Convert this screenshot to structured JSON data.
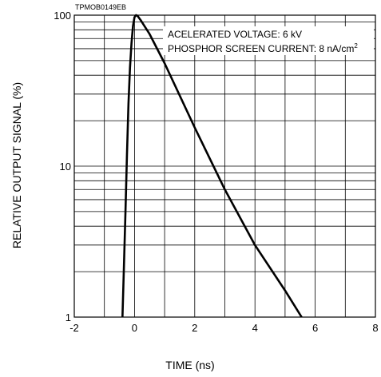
{
  "chart_data": {
    "type": "line",
    "figure_code": "TPMOB0149EB",
    "xlabel": "TIME (ns)",
    "ylabel": "RELATIVE OUTPUT SIGNAL (%)",
    "xlim": [
      -2,
      8
    ],
    "ylim": [
      1,
      100
    ],
    "y_scale": "log",
    "grid": true,
    "x_ticks": [
      -2,
      0,
      2,
      4,
      6,
      8
    ],
    "y_ticks": [
      1,
      10,
      100
    ],
    "annotations": {
      "voltage": "ACELERATED VOLTAGE: 6 kV",
      "current_prefix": "PHOSPHOR SCREEN CURRENT: 8 nA/cm",
      "current_sup": "2"
    },
    "series": [
      {
        "x": [
          -0.4,
          -0.35,
          -0.3,
          -0.25,
          -0.2,
          -0.15,
          -0.1,
          -0.05,
          0.0,
          0.05,
          0.1,
          0.2,
          0.5,
          1.0,
          2.0,
          3.0,
          4.0,
          5.0,
          5.55
        ],
        "y": [
          1,
          2.2,
          5,
          12,
          26,
          45,
          65,
          85,
          97,
          100,
          99,
          93,
          75,
          48,
          18,
          7,
          3,
          1.5,
          1
        ]
      }
    ]
  }
}
